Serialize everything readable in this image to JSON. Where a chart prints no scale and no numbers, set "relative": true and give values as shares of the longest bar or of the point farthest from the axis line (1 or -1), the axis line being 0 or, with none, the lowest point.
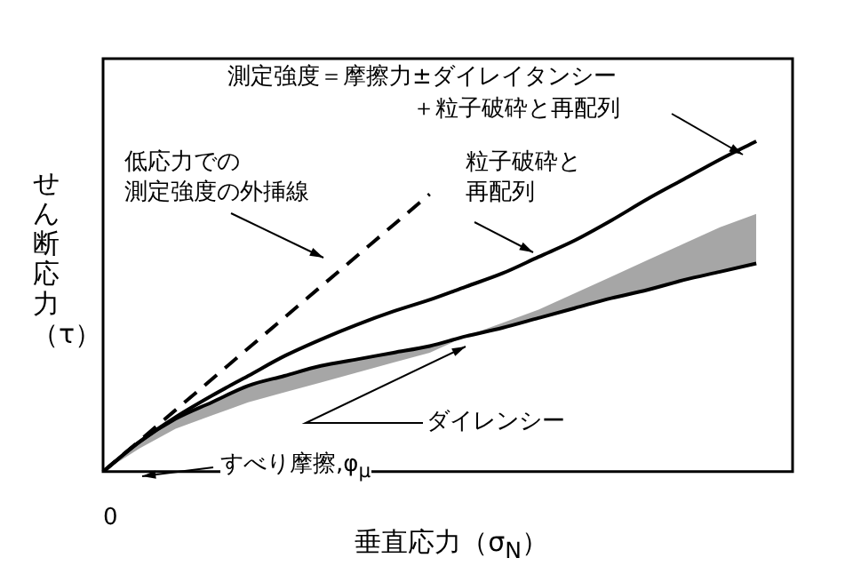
{
  "chart_data": {
    "type": "line",
    "relative": true,
    "xlabel": "垂直応力（σ$_{N}$）",
    "ylabel": "せん断応力（τ）",
    "categories": [
      null,
      null,
      null,
      null,
      null,
      null,
      null,
      null,
      null,
      null,
      null,
      null,
      null,
      null,
      null,
      null,
      null,
      null,
      null,
      null
    ],
    "series": [
      {
        "color": "#000000",
        "values": [
          0,
          0.09,
          0.165,
          0.23,
          0.29,
          0.35,
          0.4,
          0.445,
          0.485,
          0.52,
          0.56,
          0.6,
          0.65,
          0.7,
          0.76,
          0.825,
          0.885,
          0.945,
          1.0,
          null
        ]
      },
      {
        "color": "#000000",
        "line_style": "dashed",
        "values": [
          0,
          null,
          null,
          null,
          null,
          null,
          null,
          null,
          null,
          0.84,
          null,
          null,
          null,
          null,
          null,
          null,
          null,
          null,
          null,
          null
        ]
      },
      {
        "color": "#000000",
        "values": [
          0,
          0.09,
          0.16,
          0.21,
          0.26,
          0.29,
          0.32,
          0.34,
          0.36,
          0.38,
          0.41,
          0.435,
          0.465,
          0.495,
          0.525,
          0.55,
          0.58,
          0.605,
          0.63,
          null
        ],
        "lower": [
          0,
          0.07,
          0.13,
          0.17,
          0.21,
          0.24,
          0.27,
          0.3,
          0.33,
          0.36,
          0.41,
          0.435,
          0.465,
          0.495,
          0.525,
          0.55,
          0.58,
          0.605,
          0.63,
          null
        ],
        "upper": [
          0,
          0.09,
          0.16,
          0.21,
          0.26,
          0.29,
          0.32,
          0.34,
          0.36,
          0.38,
          0.41,
          0.45,
          0.49,
          0.54,
          0.59,
          0.64,
          0.69,
          0.74,
          0.78,
          null
        ]
      }
    ],
    "annotations": [
      "測定強度＝摩擦力±ダイレイタンシー",
      "＋粒子破砕と再配列",
      "低応力での",
      "測定強度の外挿線",
      "粒子破砕と",
      "再配列",
      "ダイレンシー",
      "すべり摩擦,φ$_{μ}$",
      "0"
    ],
    "grid": false,
    "legend": false,
    "marker": "none"
  }
}
